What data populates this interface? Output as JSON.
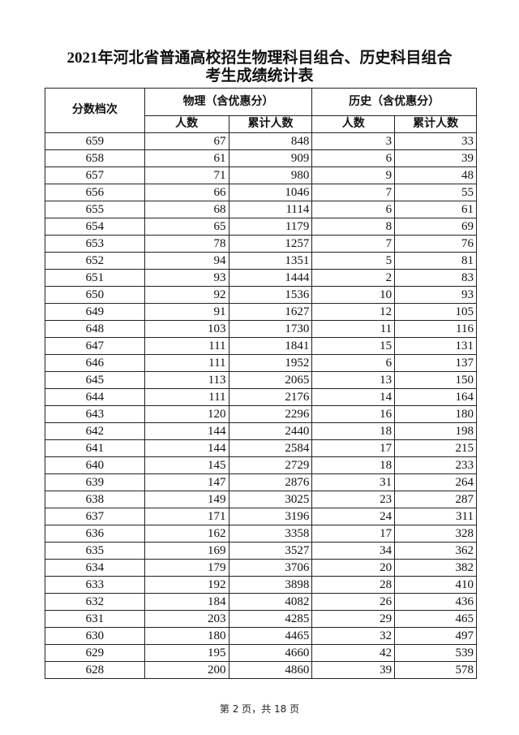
{
  "title_line1": "2021年河北省普通高校招生物理科目组合、历史科目组合",
  "title_line2": "考生成绩统计表",
  "headers": {
    "score": "分数档次",
    "physics": "物理（含优惠分）",
    "history": "历史（含优惠分）",
    "count": "人数",
    "cumulative": "累计人数"
  },
  "rows": [
    [
      "659",
      "67",
      "848",
      "3",
      "33"
    ],
    [
      "658",
      "61",
      "909",
      "6",
      "39"
    ],
    [
      "657",
      "71",
      "980",
      "9",
      "48"
    ],
    [
      "656",
      "66",
      "1046",
      "7",
      "55"
    ],
    [
      "655",
      "68",
      "1114",
      "6",
      "61"
    ],
    [
      "654",
      "65",
      "1179",
      "8",
      "69"
    ],
    [
      "653",
      "78",
      "1257",
      "7",
      "76"
    ],
    [
      "652",
      "94",
      "1351",
      "5",
      "81"
    ],
    [
      "651",
      "93",
      "1444",
      "2",
      "83"
    ],
    [
      "650",
      "92",
      "1536",
      "10",
      "93"
    ],
    [
      "649",
      "91",
      "1627",
      "12",
      "105"
    ],
    [
      "648",
      "103",
      "1730",
      "11",
      "116"
    ],
    [
      "647",
      "111",
      "1841",
      "15",
      "131"
    ],
    [
      "646",
      "111",
      "1952",
      "6",
      "137"
    ],
    [
      "645",
      "113",
      "2065",
      "13",
      "150"
    ],
    [
      "644",
      "111",
      "2176",
      "14",
      "164"
    ],
    [
      "643",
      "120",
      "2296",
      "16",
      "180"
    ],
    [
      "642",
      "144",
      "2440",
      "18",
      "198"
    ],
    [
      "641",
      "144",
      "2584",
      "17",
      "215"
    ],
    [
      "640",
      "145",
      "2729",
      "18",
      "233"
    ],
    [
      "639",
      "147",
      "2876",
      "31",
      "264"
    ],
    [
      "638",
      "149",
      "3025",
      "23",
      "287"
    ],
    [
      "637",
      "171",
      "3196",
      "24",
      "311"
    ],
    [
      "636",
      "162",
      "3358",
      "17",
      "328"
    ],
    [
      "635",
      "169",
      "3527",
      "34",
      "362"
    ],
    [
      "634",
      "179",
      "3706",
      "20",
      "382"
    ],
    [
      "633",
      "192",
      "3898",
      "28",
      "410"
    ],
    [
      "632",
      "184",
      "4082",
      "26",
      "436"
    ],
    [
      "631",
      "203",
      "4285",
      "29",
      "465"
    ],
    [
      "630",
      "180",
      "4465",
      "32",
      "497"
    ],
    [
      "629",
      "195",
      "4660",
      "42",
      "539"
    ],
    [
      "628",
      "200",
      "4860",
      "39",
      "578"
    ]
  ],
  "footer": "第 2 页，共 18 页"
}
